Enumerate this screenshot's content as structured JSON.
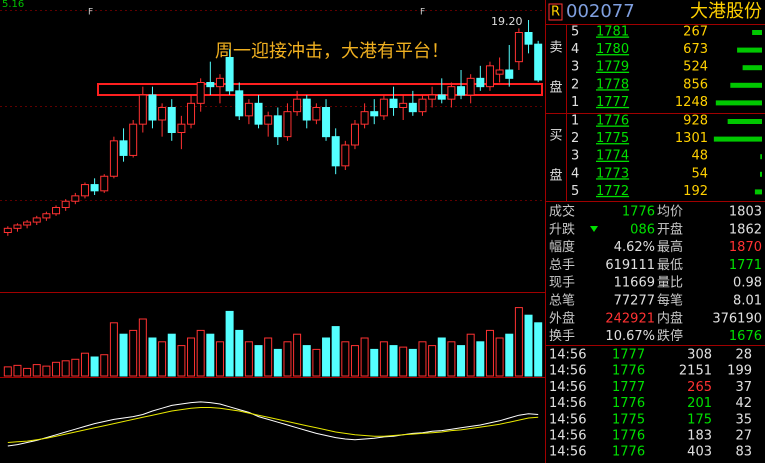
{
  "header": {
    "market_flag": "R",
    "code": "002077",
    "name": "大港股份"
  },
  "order_book": {
    "sell_label": [
      "卖",
      "盘"
    ],
    "buy_label": [
      "买",
      "盘"
    ],
    "sell": [
      {
        "level": 5,
        "price": 1781,
        "volume": 267
      },
      {
        "level": 4,
        "price": 1780,
        "volume": 673
      },
      {
        "level": 3,
        "price": 1779,
        "volume": 524
      },
      {
        "level": 2,
        "price": 1778,
        "volume": 856
      },
      {
        "level": 1,
        "price": 1777,
        "volume": 1248
      }
    ],
    "buy": [
      {
        "level": 1,
        "price": 1776,
        "volume": 928
      },
      {
        "level": 2,
        "price": 1775,
        "volume": 1301
      },
      {
        "level": 3,
        "price": 1774,
        "volume": 48
      },
      {
        "level": 4,
        "price": 1773,
        "volume": 54
      },
      {
        "level": 5,
        "price": 1772,
        "volume": 192
      }
    ],
    "bar_color": "#00c800"
  },
  "stats": [
    {
      "label": "成交",
      "value": 1776,
      "color": "#00e000"
    },
    {
      "label": "均价",
      "value": 1803,
      "color": "#e0e0e0"
    },
    {
      "label": "升跌",
      "value": "086",
      "color": "#00e000"
    },
    {
      "label": "开盘",
      "value": 1862,
      "color": "#e0e0e0"
    },
    {
      "label": "幅度",
      "value": "4.62%",
      "color": "#e0e0e0"
    },
    {
      "label": "最高",
      "value": 1870,
      "color": "#ff3232"
    },
    {
      "label": "总手",
      "value": 619111,
      "color": "#e0e0e0"
    },
    {
      "label": "最低",
      "value": 1771,
      "color": "#00e000"
    },
    {
      "label": "现手",
      "value": 11669,
      "color": "#e0e0e0"
    },
    {
      "label": "量比",
      "value": 0.98,
      "color": "#e0e0e0"
    },
    {
      "label": "总笔",
      "value": 77277,
      "color": "#e0e0e0"
    },
    {
      "label": "每笔",
      "value": 8.01,
      "color": "#e0e0e0"
    },
    {
      "label": "外盘",
      "value": 242921,
      "color": "#ff3232"
    },
    {
      "label": "内盘",
      "value": 376190,
      "color": "#e0e0e0"
    },
    {
      "label": "换手",
      "value": "10.67%",
      "color": "#e0e0e0"
    },
    {
      "label": "跌停",
      "value": 1676,
      "color": "#00e000"
    }
  ],
  "ticks": [
    {
      "time": "14:56",
      "price": 1777,
      "volume": 308,
      "count": 28,
      "volume_color": "#e0e0e0"
    },
    {
      "time": "14:56",
      "price": 1776,
      "volume": 2151,
      "count": 199,
      "volume_color": "#e0e0e0"
    },
    {
      "time": "14:56",
      "price": 1777,
      "volume": 265,
      "count": 37,
      "volume_color": "#ff3232"
    },
    {
      "time": "14:56",
      "price": 1776,
      "volume": 201,
      "count": 42,
      "volume_color": "#00e000"
    },
    {
      "time": "14:56",
      "price": 1775,
      "volume": 175,
      "count": 35,
      "volume_color": "#00e000"
    },
    {
      "time": "14:56",
      "price": 1776,
      "volume": 183,
      "count": 27,
      "volume_color": "#e0e0e0"
    },
    {
      "time": "14:56",
      "price": 1776,
      "volume": 403,
      "count": 83,
      "volume_color": "#e0e0e0"
    }
  ],
  "chart_data": [
    {
      "type": "candlestick",
      "date_label": "5.16",
      "high_label": "19.20",
      "period_markers": [
        "F",
        "F"
      ],
      "annotation": "周一迎接冲击，大港有平台！",
      "up_color": "#ff3232",
      "down_color": "#54ffff",
      "ylim": [
        13.8,
        19.32
      ],
      "open": [
        14.1,
        14.2,
        14.28,
        14.35,
        14.45,
        14.55,
        14.7,
        14.85,
        14.98,
        15.25,
        15.1,
        15.45,
        16.3,
        15.95,
        16.7,
        17.4,
        16.8,
        17.1,
        16.5,
        16.7,
        17.2,
        17.7,
        17.6,
        18.3,
        17.5,
        16.9,
        17.2,
        16.7,
        16.9,
        16.4,
        17.0,
        17.3,
        16.8,
        17.1,
        16.4,
        15.7,
        16.2,
        16.7,
        17.0,
        16.9,
        17.3,
        17.1,
        17.2,
        17.0,
        17.3,
        17.4,
        17.3,
        17.6,
        17.4,
        17.8,
        17.6,
        17.9,
        18.0,
        18.2,
        18.9,
        18.62
      ],
      "high": [
        14.25,
        14.32,
        14.4,
        14.5,
        14.6,
        14.75,
        14.9,
        15.05,
        15.3,
        15.4,
        15.5,
        16.4,
        16.6,
        16.8,
        17.6,
        17.6,
        17.2,
        17.3,
        16.9,
        17.4,
        17.8,
        18.2,
        17.9,
        18.5,
        17.7,
        17.3,
        17.4,
        17.0,
        17.1,
        17.2,
        17.5,
        17.4,
        17.2,
        17.3,
        16.6,
        16.3,
        16.8,
        17.2,
        17.3,
        17.4,
        17.6,
        17.4,
        17.5,
        17.4,
        17.6,
        17.8,
        17.7,
        18.0,
        17.9,
        18.1,
        18.2,
        18.3,
        18.6,
        19.0,
        19.2,
        18.7
      ],
      "low": [
        14.02,
        14.12,
        14.2,
        14.28,
        14.38,
        14.5,
        14.62,
        14.78,
        14.92,
        15.0,
        15.05,
        15.4,
        15.8,
        15.9,
        16.5,
        16.6,
        16.4,
        16.3,
        16.1,
        16.6,
        17.0,
        17.4,
        17.2,
        17.4,
        16.8,
        16.7,
        16.6,
        16.4,
        16.2,
        16.3,
        16.9,
        16.6,
        16.7,
        16.3,
        15.5,
        15.6,
        16.1,
        16.6,
        16.7,
        16.8,
        16.9,
        16.8,
        16.9,
        16.9,
        17.1,
        17.2,
        17.1,
        17.3,
        17.2,
        17.5,
        17.5,
        17.7,
        17.6,
        18.0,
        18.4,
        17.71
      ],
      "close": [
        14.2,
        14.28,
        14.35,
        14.45,
        14.55,
        14.7,
        14.85,
        14.98,
        15.25,
        15.1,
        15.45,
        16.3,
        15.95,
        16.7,
        17.4,
        16.8,
        17.1,
        16.5,
        16.7,
        17.2,
        17.7,
        17.6,
        17.8,
        17.5,
        16.9,
        17.2,
        16.7,
        16.9,
        16.4,
        17.0,
        17.3,
        16.8,
        17.1,
        16.4,
        15.7,
        16.2,
        16.7,
        17.0,
        16.9,
        17.3,
        17.1,
        17.2,
        17.0,
        17.3,
        17.4,
        17.3,
        17.6,
        17.4,
        17.8,
        17.6,
        18.1,
        18.0,
        17.8,
        18.9,
        18.62,
        17.76
      ]
    },
    {
      "type": "bar",
      "ylim": [
        0,
        100
      ],
      "values": [
        12,
        14,
        10,
        15,
        13,
        18,
        20,
        22,
        30,
        25,
        28,
        70,
        55,
        60,
        75,
        50,
        45,
        55,
        40,
        50,
        60,
        55,
        45,
        85,
        60,
        45,
        40,
        50,
        35,
        45,
        55,
        40,
        35,
        50,
        65,
        45,
        40,
        50,
        35,
        45,
        40,
        38,
        35,
        45,
        40,
        50,
        45,
        40,
        55,
        45,
        60,
        50,
        55,
        90,
        80,
        70
      ]
    },
    {
      "type": "line",
      "ylim": [
        0,
        100
      ],
      "series": [
        {
          "color": "#ffffff",
          "values": [
            20,
            22,
            25,
            28,
            32,
            36,
            40,
            44,
            48,
            52,
            55,
            58,
            60,
            62,
            65,
            70,
            74,
            78,
            80,
            82,
            83,
            82,
            80,
            76,
            72,
            68,
            62,
            58,
            54,
            50,
            46,
            42,
            38,
            35,
            32,
            30,
            29,
            30,
            31,
            33,
            34,
            36,
            38,
            39,
            41,
            42,
            44,
            46,
            48,
            50,
            53,
            56,
            60,
            64,
            66,
            65
          ]
        },
        {
          "color": "#e8e800",
          "values": [
            25,
            26,
            27,
            29,
            31,
            34,
            37,
            40,
            43,
            46,
            49,
            52,
            55,
            58,
            61,
            64,
            67,
            70,
            72,
            74,
            75,
            75,
            74,
            72,
            70,
            67,
            64,
            61,
            58,
            55,
            52,
            49,
            46,
            43,
            40,
            38,
            36,
            35,
            34,
            34,
            35,
            36,
            37,
            38,
            39,
            40,
            42,
            43,
            45,
            47,
            49,
            51,
            54,
            57,
            60,
            61
          ]
        }
      ]
    }
  ]
}
